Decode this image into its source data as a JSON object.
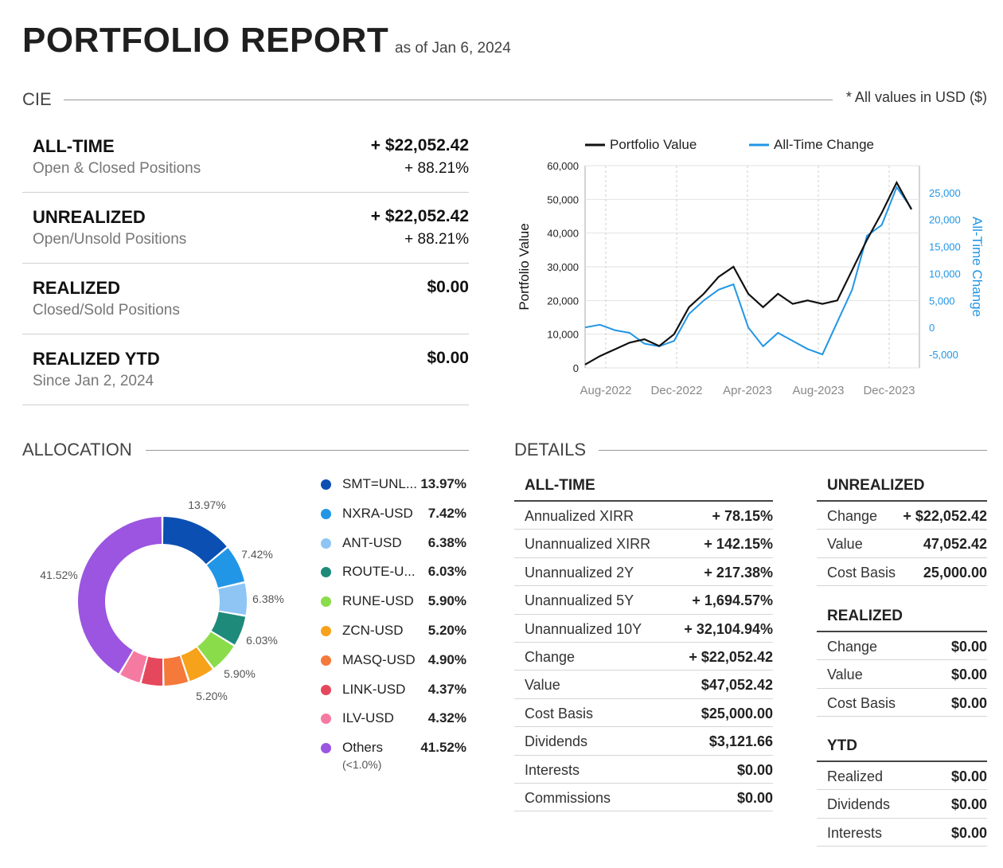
{
  "header": {
    "title": "PORTFOLIO REPORT",
    "as_of": "as of Jan 6, 2024",
    "section": "CIE",
    "usd_note": "* All values in USD ($)"
  },
  "summary": [
    {
      "label": "ALL-TIME",
      "sub": "Open & Closed Positions",
      "value": "+ $22,052.42",
      "pct": "+ 88.21%"
    },
    {
      "label": "UNREALIZED",
      "sub": "Open/Unsold Positions",
      "value": "+ $22,052.42",
      "pct": "+ 88.21%"
    },
    {
      "label": "REALIZED",
      "sub": "Closed/Sold Positions",
      "value": "$0.00",
      "pct": ""
    },
    {
      "label": "REALIZED YTD",
      "sub": "Since Jan 2, 2024",
      "value": "$0.00",
      "pct": ""
    }
  ],
  "chart_data": {
    "type": "line",
    "legend": [
      "Portfolio Value",
      "All-Time Change"
    ],
    "ylabel_left": "Portfolio Value",
    "ylabel_right": "All-Time Change",
    "y_left_ticks": [
      "0",
      "10,000",
      "20,000",
      "30,000",
      "40,000",
      "50,000",
      "60,000"
    ],
    "y_right_ticks": [
      "-5,000",
      "0",
      "5,000",
      "10,000",
      "15,000",
      "20,000",
      "25,000"
    ],
    "x_ticks": [
      "Aug-2022",
      "Dec-2022",
      "Apr-2023",
      "Aug-2023",
      "Dec-2023"
    ],
    "ylim_left": [
      0,
      60000
    ],
    "ylim_right": [
      -7500,
      30000
    ],
    "colors": {
      "portfolio": "#111111",
      "change": "#2196e6"
    },
    "x_month_index": [
      0,
      1,
      2,
      3,
      4,
      5,
      6,
      7,
      8,
      9,
      10,
      11,
      12,
      13,
      14,
      15,
      16,
      17,
      18,
      19,
      20,
      21,
      22
    ],
    "series": [
      {
        "name": "Portfolio Value",
        "values": [
          1000,
          3500,
          5500,
          7500,
          8500,
          6500,
          10000,
          18000,
          22000,
          27000,
          30000,
          22000,
          18000,
          22000,
          19000,
          20000,
          19000,
          20000,
          29000,
          38000,
          46000,
          55000,
          47000
        ]
      },
      {
        "name": "All-Time Change",
        "values": [
          0,
          500,
          -500,
          -1000,
          -3000,
          -3500,
          -2500,
          2500,
          5000,
          7000,
          8000,
          0,
          -3500,
          -1000,
          -2500,
          -4000,
          -5000,
          1000,
          7000,
          17000,
          19000,
          26000,
          22052
        ]
      }
    ]
  },
  "allocation": {
    "title": "ALLOCATION",
    "items": [
      {
        "name": "SMT=UNL...",
        "pct": "13.97%",
        "value": 13.97,
        "color": "#0b4fb3"
      },
      {
        "name": "NXRA-USD",
        "pct": "7.42%",
        "value": 7.42,
        "color": "#2196e6"
      },
      {
        "name": "ANT-USD",
        "pct": "6.38%",
        "value": 6.38,
        "color": "#8ec5f5"
      },
      {
        "name": "ROUTE-U...",
        "pct": "6.03%",
        "value": 6.03,
        "color": "#1e8a7a"
      },
      {
        "name": "RUNE-USD",
        "pct": "5.90%",
        "value": 5.9,
        "color": "#8bdc4b"
      },
      {
        "name": "ZCN-USD",
        "pct": "5.20%",
        "value": 5.2,
        "color": "#f7a21b"
      },
      {
        "name": "MASQ-USD",
        "pct": "4.90%",
        "value": 4.9,
        "color": "#f5793a"
      },
      {
        "name": "LINK-USD",
        "pct": "4.37%",
        "value": 4.37,
        "color": "#e5485c"
      },
      {
        "name": "ILV-USD",
        "pct": "4.32%",
        "value": 4.32,
        "color": "#f57aa1"
      },
      {
        "name": "Others",
        "pct": "41.52%",
        "value": 41.52,
        "color": "#9b55e0",
        "note": "(<1.0%)"
      }
    ],
    "donut_labels": [
      "13.97%",
      "7.42%",
      "6.38%",
      "6.03%",
      "5.90%",
      "5.20%",
      "41.52%"
    ]
  },
  "details": {
    "title": "DETAILS",
    "all_time": {
      "title": "ALL-TIME",
      "rows": [
        {
          "k": "Annualized XIRR",
          "v": "+ 78.15%"
        },
        {
          "k": "Unannualized XIRR",
          "v": "+ 142.15%"
        },
        {
          "k": "Unannualized 2Y",
          "v": "+ 217.38%"
        },
        {
          "k": "Unannualized 5Y",
          "v": "+ 1,694.57%"
        },
        {
          "k": "Unannualized 10Y",
          "v": "+ 32,104.94%"
        },
        {
          "k": "Change",
          "v": "+ $22,052.42"
        },
        {
          "k": "Value",
          "v": "$47,052.42"
        },
        {
          "k": "Cost Basis",
          "v": "$25,000.00"
        },
        {
          "k": "Dividends",
          "v": "$3,121.66"
        },
        {
          "k": "Interests",
          "v": "$0.00"
        },
        {
          "k": "Commissions",
          "v": "$0.00"
        }
      ]
    },
    "unrealized": {
      "title": "UNREALIZED",
      "rows": [
        {
          "k": "Change",
          "v": "+ $22,052.42"
        },
        {
          "k": "Value",
          "v": "47,052.42"
        },
        {
          "k": "Cost Basis",
          "v": "25,000.00"
        }
      ]
    },
    "realized": {
      "title": "REALIZED",
      "rows": [
        {
          "k": "Change",
          "v": "$0.00"
        },
        {
          "k": "Value",
          "v": "$0.00"
        },
        {
          "k": "Cost Basis",
          "v": "$0.00"
        }
      ]
    },
    "ytd": {
      "title": "YTD",
      "rows": [
        {
          "k": "Realized",
          "v": "$0.00"
        },
        {
          "k": "Dividends",
          "v": "$0.00"
        },
        {
          "k": "Interests",
          "v": "$0.00"
        }
      ]
    }
  }
}
